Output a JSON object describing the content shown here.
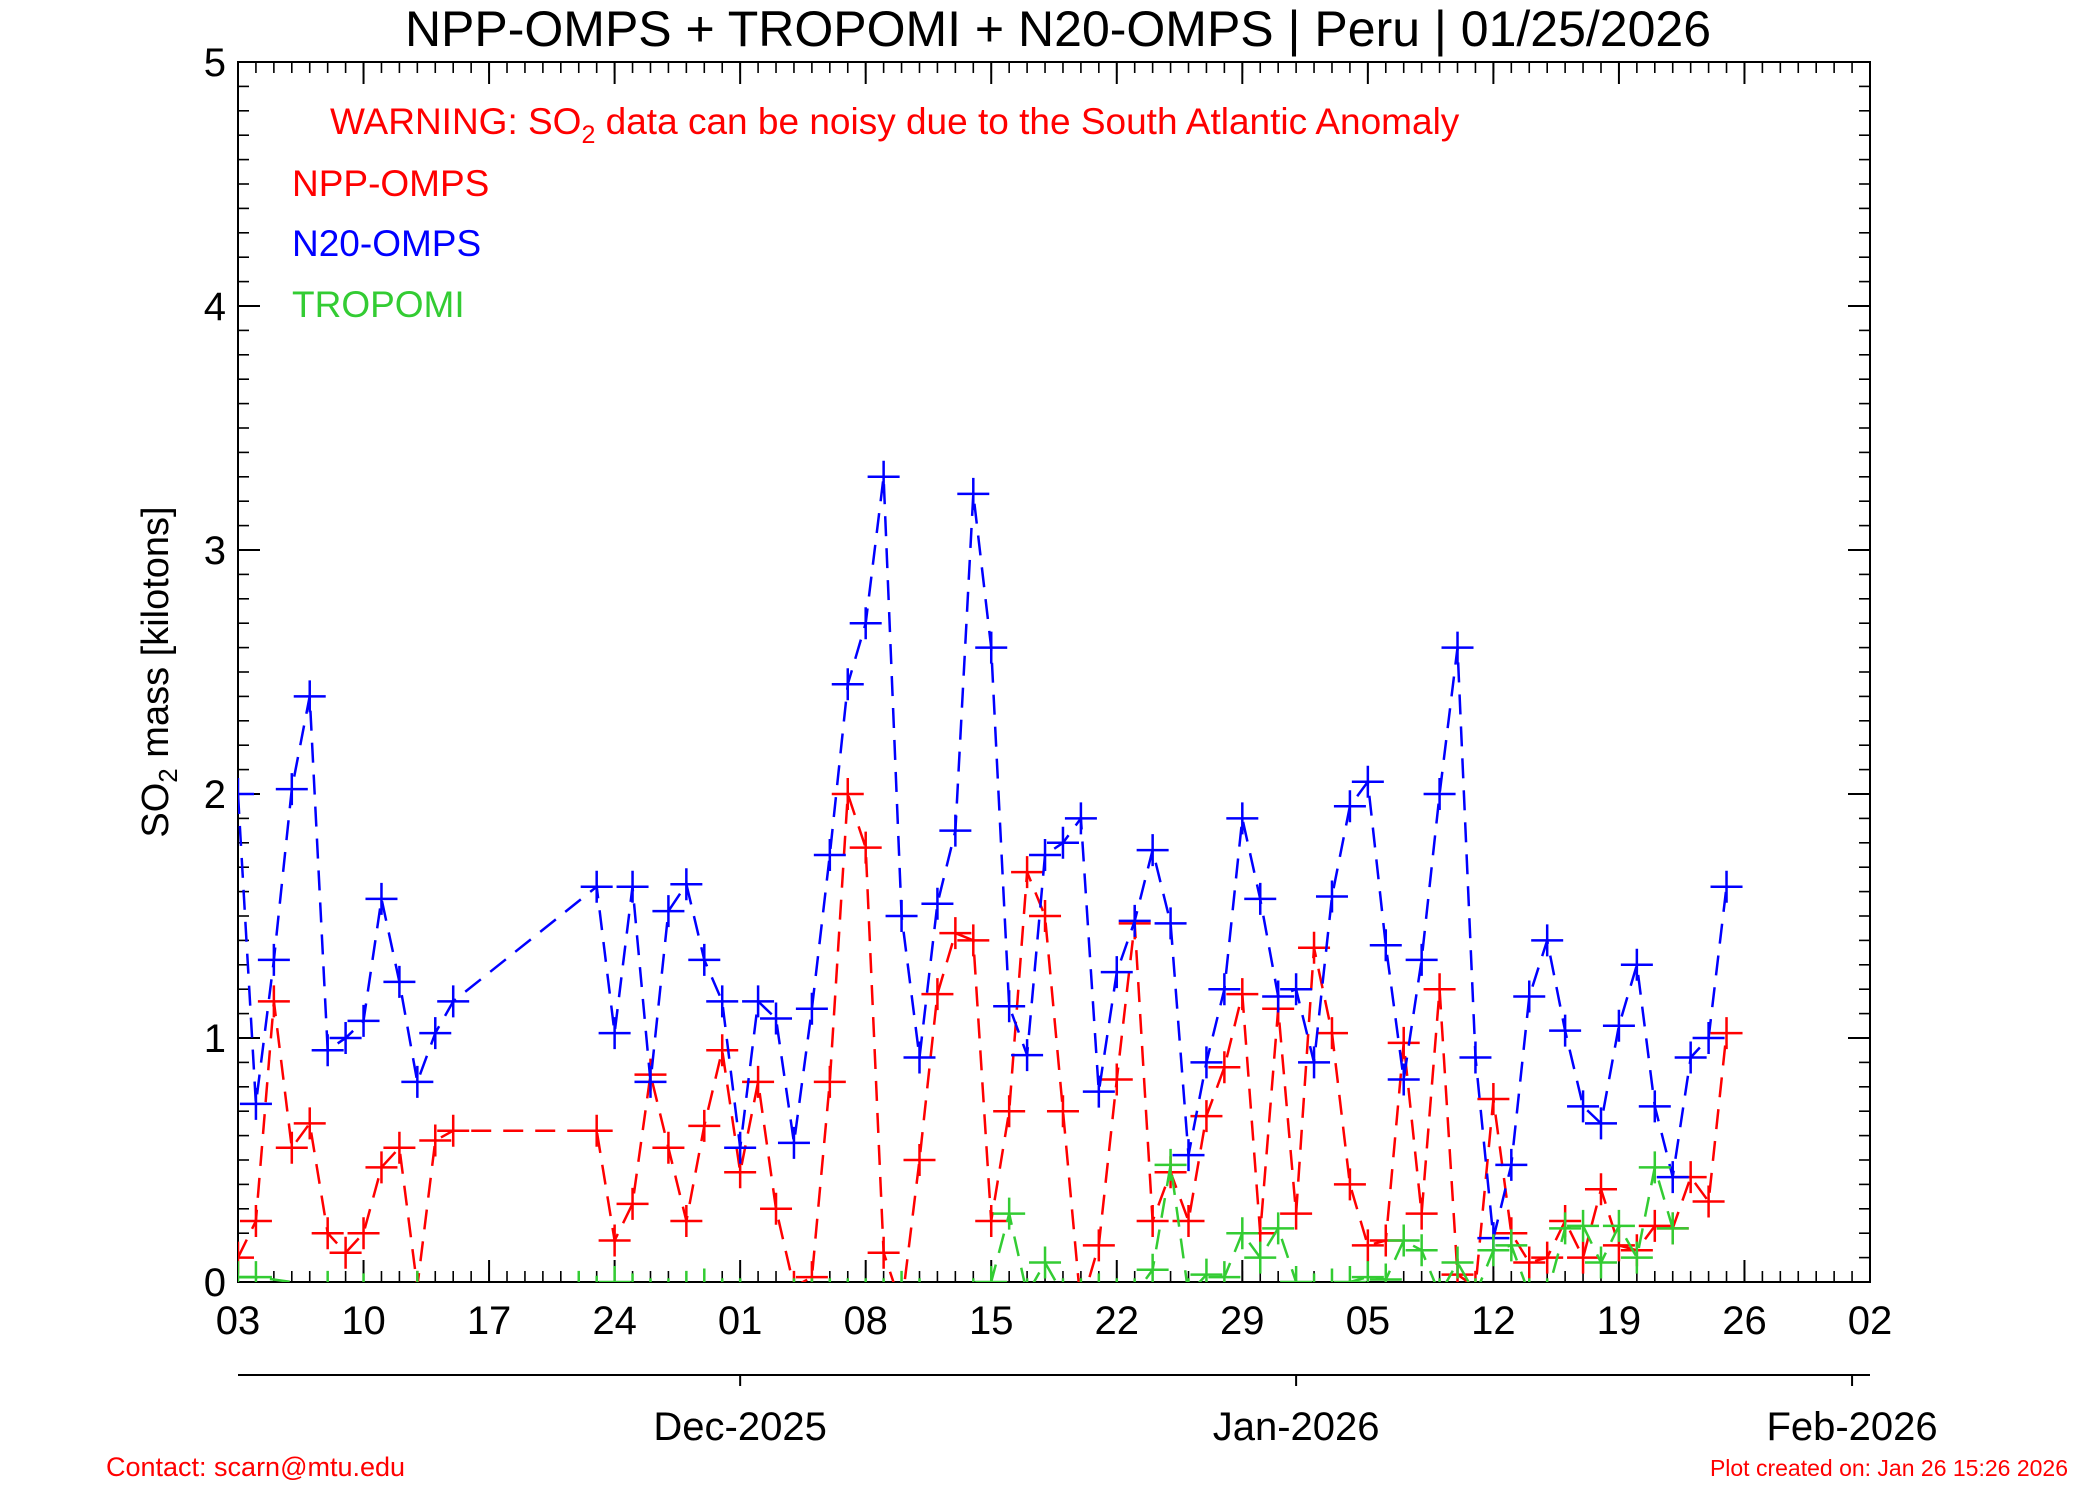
{
  "colors": {
    "npp": "#ff0000",
    "n20": "#0000ff",
    "tropomi": "#33cc33",
    "axis": "#000000",
    "warning": "#ff0000",
    "footer": "#ff0000"
  },
  "chart_data": {
    "type": "line",
    "title": "NPP-OMPS + TROPOMI + N20-OMPS | Peru | 01/25/2026",
    "warning": {
      "prefix": "WARNING: SO",
      "sub": "2",
      "suffix": " data can be noisy due to the South Atlantic Anomaly"
    },
    "ylabel": {
      "prefix": "SO",
      "sub": "2",
      "suffix": " mass [kilotons]"
    },
    "ylim": [
      0,
      5
    ],
    "xlim": [
      "2025-11-03",
      "2026-02-02"
    ],
    "x_ticks": [
      {
        "date": "2025-11-03",
        "label": "03"
      },
      {
        "date": "2025-11-10",
        "label": "10"
      },
      {
        "date": "2025-11-17",
        "label": "17"
      },
      {
        "date": "2025-11-24",
        "label": "24"
      },
      {
        "date": "2025-12-01",
        "label": "01"
      },
      {
        "date": "2025-12-08",
        "label": "08"
      },
      {
        "date": "2025-12-15",
        "label": "15"
      },
      {
        "date": "2025-12-22",
        "label": "22"
      },
      {
        "date": "2025-12-29",
        "label": "29"
      },
      {
        "date": "2026-01-05",
        "label": "05"
      },
      {
        "date": "2026-01-12",
        "label": "12"
      },
      {
        "date": "2026-01-19",
        "label": "19"
      },
      {
        "date": "2026-01-26",
        "label": "26"
      },
      {
        "date": "2026-02-02",
        "label": "02"
      }
    ],
    "y_ticks": [
      {
        "value": 0,
        "label": "0"
      },
      {
        "value": 1,
        "label": "1"
      },
      {
        "value": 2,
        "label": "2"
      },
      {
        "value": 3,
        "label": "3"
      },
      {
        "value": 4,
        "label": "4"
      },
      {
        "value": 5,
        "label": "5"
      }
    ],
    "months": [
      {
        "date": "2025-12-01",
        "label": "Dec-2025"
      },
      {
        "date": "2026-01-01",
        "label": "Jan-2026"
      },
      {
        "date": "2026-02-01",
        "label": "Feb-2026"
      }
    ],
    "legend": [
      "NPP-OMPS",
      "N20-OMPS",
      "TROPOMI"
    ],
    "series": [
      {
        "name": "NPP-OMPS",
        "key": "npp",
        "points": [
          [
            "2025-11-03",
            0.1
          ],
          [
            "2025-11-04",
            0.25
          ],
          [
            "2025-11-05",
            1.15
          ],
          [
            "2025-11-06",
            0.55
          ],
          [
            "2025-11-07",
            0.65
          ],
          [
            "2025-11-08",
            0.2
          ],
          [
            "2025-11-09",
            0.12
          ],
          [
            "2025-11-10",
            0.2
          ],
          [
            "2025-11-11",
            0.47
          ],
          [
            "2025-11-12",
            0.55
          ],
          [
            "2025-11-13",
            -0.02
          ],
          [
            "2025-11-14",
            0.58
          ],
          [
            "2025-11-15",
            0.62
          ],
          [
            "2025-11-23",
            0.62
          ],
          [
            "2025-11-24",
            0.17
          ],
          [
            "2025-11-25",
            0.32
          ],
          [
            "2025-11-26",
            0.85
          ],
          [
            "2025-11-27",
            0.55
          ],
          [
            "2025-11-28",
            0.25
          ],
          [
            "2025-11-29",
            0.64
          ],
          [
            "2025-11-30",
            0.95
          ],
          [
            "2025-12-01",
            0.45
          ],
          [
            "2025-12-02",
            0.82
          ],
          [
            "2025-12-03",
            0.3
          ],
          [
            "2025-12-04",
            -0.02
          ],
          [
            "2025-12-05",
            0.02
          ],
          [
            "2025-12-06",
            0.82
          ],
          [
            "2025-12-07",
            2.0
          ],
          [
            "2025-12-08",
            1.78
          ],
          [
            "2025-12-09",
            0.12
          ],
          [
            "2025-12-10",
            -0.1
          ],
          [
            "2025-12-11",
            0.5
          ],
          [
            "2025-12-12",
            1.18
          ],
          [
            "2025-12-13",
            1.43
          ],
          [
            "2025-12-14",
            1.4
          ],
          [
            "2025-12-15",
            0.25
          ],
          [
            "2025-12-16",
            0.7
          ],
          [
            "2025-12-17",
            1.68
          ],
          [
            "2025-12-18",
            1.5
          ],
          [
            "2025-12-19",
            0.7
          ],
          [
            "2025-12-20",
            -0.1
          ],
          [
            "2025-12-21",
            0.15
          ],
          [
            "2025-12-22",
            0.83
          ],
          [
            "2025-12-23",
            1.47
          ],
          [
            "2025-12-24",
            0.25
          ],
          [
            "2025-12-25",
            0.45
          ],
          [
            "2025-12-26",
            0.25
          ],
          [
            "2025-12-27",
            0.68
          ],
          [
            "2025-12-28",
            0.88
          ],
          [
            "2025-12-29",
            1.18
          ],
          [
            "2025-12-30",
            0.2
          ],
          [
            "2025-12-31",
            1.12
          ],
          [
            "2026-01-01",
            0.28
          ],
          [
            "2026-01-02",
            1.37
          ],
          [
            "2026-01-03",
            1.02
          ],
          [
            "2026-01-04",
            0.4
          ],
          [
            "2026-01-05",
            0.15
          ],
          [
            "2026-01-06",
            0.17
          ],
          [
            "2026-01-07",
            0.98
          ],
          [
            "2026-01-08",
            0.28
          ],
          [
            "2026-01-09",
            1.2
          ],
          [
            "2026-01-10",
            0.03
          ],
          [
            "2026-01-11",
            -0.02
          ],
          [
            "2026-01-12",
            0.75
          ],
          [
            "2026-01-13",
            0.2
          ],
          [
            "2026-01-14",
            0.08
          ],
          [
            "2026-01-15",
            0.1
          ],
          [
            "2026-01-16",
            0.25
          ],
          [
            "2026-01-17",
            0.1
          ],
          [
            "2026-01-18",
            0.38
          ],
          [
            "2026-01-19",
            0.15
          ],
          [
            "2026-01-20",
            0.13
          ],
          [
            "2026-01-21",
            0.23
          ],
          [
            "2026-01-22",
            0.22
          ],
          [
            "2026-01-23",
            0.43
          ],
          [
            "2026-01-24",
            0.33
          ],
          [
            "2026-01-25",
            1.02
          ]
        ]
      },
      {
        "name": "N20-OMPS",
        "key": "n20",
        "points": [
          [
            "2025-11-03",
            2.0
          ],
          [
            "2025-11-04",
            0.73
          ],
          [
            "2025-11-05",
            1.32
          ],
          [
            "2025-11-06",
            2.02
          ],
          [
            "2025-11-07",
            2.4
          ],
          [
            "2025-11-08",
            0.95
          ],
          [
            "2025-11-09",
            1.0
          ],
          [
            "2025-11-10",
            1.07
          ],
          [
            "2025-11-11",
            1.57
          ],
          [
            "2025-11-12",
            1.23
          ],
          [
            "2025-11-13",
            0.82
          ],
          [
            "2025-11-14",
            1.02
          ],
          [
            "2025-11-15",
            1.15
          ],
          [
            "2025-11-23",
            1.62
          ],
          [
            "2025-11-24",
            1.02
          ],
          [
            "2025-11-25",
            1.62
          ],
          [
            "2025-11-26",
            0.82
          ],
          [
            "2025-11-27",
            1.52
          ],
          [
            "2025-11-28",
            1.63
          ],
          [
            "2025-11-29",
            1.32
          ],
          [
            "2025-11-30",
            1.15
          ],
          [
            "2025-12-01",
            0.55
          ],
          [
            "2025-12-02",
            1.15
          ],
          [
            "2025-12-03",
            1.08
          ],
          [
            "2025-12-04",
            0.57
          ],
          [
            "2025-12-05",
            1.12
          ],
          [
            "2025-12-06",
            1.75
          ],
          [
            "2025-12-07",
            2.45
          ],
          [
            "2025-12-08",
            2.7
          ],
          [
            "2025-12-09",
            3.3
          ],
          [
            "2025-12-10",
            1.5
          ],
          [
            "2025-12-11",
            0.92
          ],
          [
            "2025-12-12",
            1.55
          ],
          [
            "2025-12-13",
            1.85
          ],
          [
            "2025-12-14",
            3.23
          ],
          [
            "2025-12-15",
            2.6
          ],
          [
            "2025-12-16",
            1.13
          ],
          [
            "2025-12-17",
            0.93
          ],
          [
            "2025-12-18",
            1.75
          ],
          [
            "2025-12-19",
            1.8
          ],
          [
            "2025-12-20",
            1.9
          ],
          [
            "2025-12-21",
            0.78
          ],
          [
            "2025-12-22",
            1.27
          ],
          [
            "2025-12-23",
            1.48
          ],
          [
            "2025-12-24",
            1.77
          ],
          [
            "2025-12-25",
            1.47
          ],
          [
            "2025-12-26",
            0.52
          ],
          [
            "2025-12-27",
            0.9
          ],
          [
            "2025-12-28",
            1.2
          ],
          [
            "2025-12-29",
            1.9
          ],
          [
            "2025-12-30",
            1.57
          ],
          [
            "2025-12-31",
            1.17
          ],
          [
            "2026-01-01",
            1.2
          ],
          [
            "2026-01-02",
            0.9
          ],
          [
            "2026-01-03",
            1.58
          ],
          [
            "2026-01-04",
            1.95
          ],
          [
            "2026-01-05",
            2.05
          ],
          [
            "2026-01-06",
            1.38
          ],
          [
            "2026-01-07",
            0.83
          ],
          [
            "2026-01-08",
            1.32
          ],
          [
            "2026-01-09",
            2.0
          ],
          [
            "2026-01-10",
            2.6
          ],
          [
            "2026-01-11",
            0.92
          ],
          [
            "2026-01-12",
            0.18
          ],
          [
            "2026-01-13",
            0.48
          ],
          [
            "2026-01-14",
            1.17
          ],
          [
            "2026-01-15",
            1.4
          ],
          [
            "2026-01-16",
            1.03
          ],
          [
            "2026-01-17",
            0.72
          ],
          [
            "2026-01-18",
            0.65
          ],
          [
            "2026-01-19",
            1.05
          ],
          [
            "2026-01-20",
            1.3
          ],
          [
            "2026-01-21",
            0.72
          ],
          [
            "2026-01-22",
            0.43
          ],
          [
            "2026-01-23",
            0.92
          ],
          [
            "2026-01-24",
            1.0
          ],
          [
            "2026-01-25",
            1.62
          ]
        ]
      },
      {
        "name": "TROPOMI",
        "key": "tropomi",
        "points": [
          [
            "2025-11-03",
            0.02
          ],
          [
            "2025-11-04",
            0.02
          ],
          [
            "2025-11-08",
            -0.02
          ],
          [
            "2025-11-10",
            -0.03
          ],
          [
            "2025-11-13",
            -0.02
          ],
          [
            "2025-11-22",
            -0.02
          ],
          [
            "2025-11-23",
            -0.04
          ],
          [
            "2025-11-24",
            0.0
          ],
          [
            "2025-11-25",
            -0.03
          ],
          [
            "2025-11-26",
            -0.05
          ],
          [
            "2025-11-27",
            -0.05
          ],
          [
            "2025-11-28",
            -0.02
          ],
          [
            "2025-11-29",
            -0.01
          ],
          [
            "2025-11-30",
            -0.05
          ],
          [
            "2025-12-01",
            -0.05
          ],
          [
            "2025-12-04",
            -0.05
          ],
          [
            "2025-12-05",
            -0.05
          ],
          [
            "2025-12-06",
            -0.05
          ],
          [
            "2025-12-07",
            -0.05
          ],
          [
            "2025-12-08",
            -0.05
          ],
          [
            "2025-12-09",
            -0.05
          ],
          [
            "2025-12-10",
            -0.02
          ],
          [
            "2025-12-11",
            -0.05
          ],
          [
            "2025-12-14",
            -0.05
          ],
          [
            "2025-12-15",
            0.0
          ],
          [
            "2025-12-16",
            0.28
          ],
          [
            "2025-12-17",
            -0.05
          ],
          [
            "2025-12-18",
            0.08
          ],
          [
            "2025-12-19",
            -0.05
          ],
          [
            "2025-12-20",
            -0.05
          ],
          [
            "2025-12-21",
            -0.03
          ],
          [
            "2025-12-22",
            -0.05
          ],
          [
            "2025-12-23",
            -0.05
          ],
          [
            "2025-12-24",
            0.05
          ],
          [
            "2025-12-25",
            0.48
          ],
          [
            "2025-12-26",
            -0.05
          ],
          [
            "2025-12-27",
            0.03
          ],
          [
            "2025-12-28",
            0.02
          ],
          [
            "2025-12-29",
            0.2
          ],
          [
            "2025-12-30",
            0.1
          ],
          [
            "2025-12-31",
            0.22
          ],
          [
            "2026-01-01",
            0.0
          ],
          [
            "2026-01-02",
            -0.03
          ],
          [
            "2026-01-03",
            -0.01
          ],
          [
            "2026-01-04",
            0.0
          ],
          [
            "2026-01-05",
            0.02
          ],
          [
            "2026-01-06",
            0.01
          ],
          [
            "2026-01-07",
            0.17
          ],
          [
            "2026-01-08",
            0.13
          ],
          [
            "2026-01-09",
            -0.05
          ],
          [
            "2026-01-10",
            0.08
          ],
          [
            "2026-01-11",
            -0.05
          ],
          [
            "2026-01-12",
            0.13
          ],
          [
            "2026-01-13",
            0.15
          ],
          [
            "2026-01-14",
            -0.05
          ],
          [
            "2026-01-15",
            -0.05
          ],
          [
            "2026-01-16",
            0.22
          ],
          [
            "2026-01-17",
            0.23
          ],
          [
            "2026-01-18",
            0.08
          ],
          [
            "2026-01-19",
            0.23
          ],
          [
            "2026-01-20",
            0.1
          ],
          [
            "2026-01-21",
            0.47
          ],
          [
            "2026-01-22",
            0.22
          ]
        ]
      }
    ]
  },
  "footer": {
    "contact": "Contact: scarn@mtu.edu",
    "created": "Plot created on: Jan 26 15:26 2026"
  }
}
